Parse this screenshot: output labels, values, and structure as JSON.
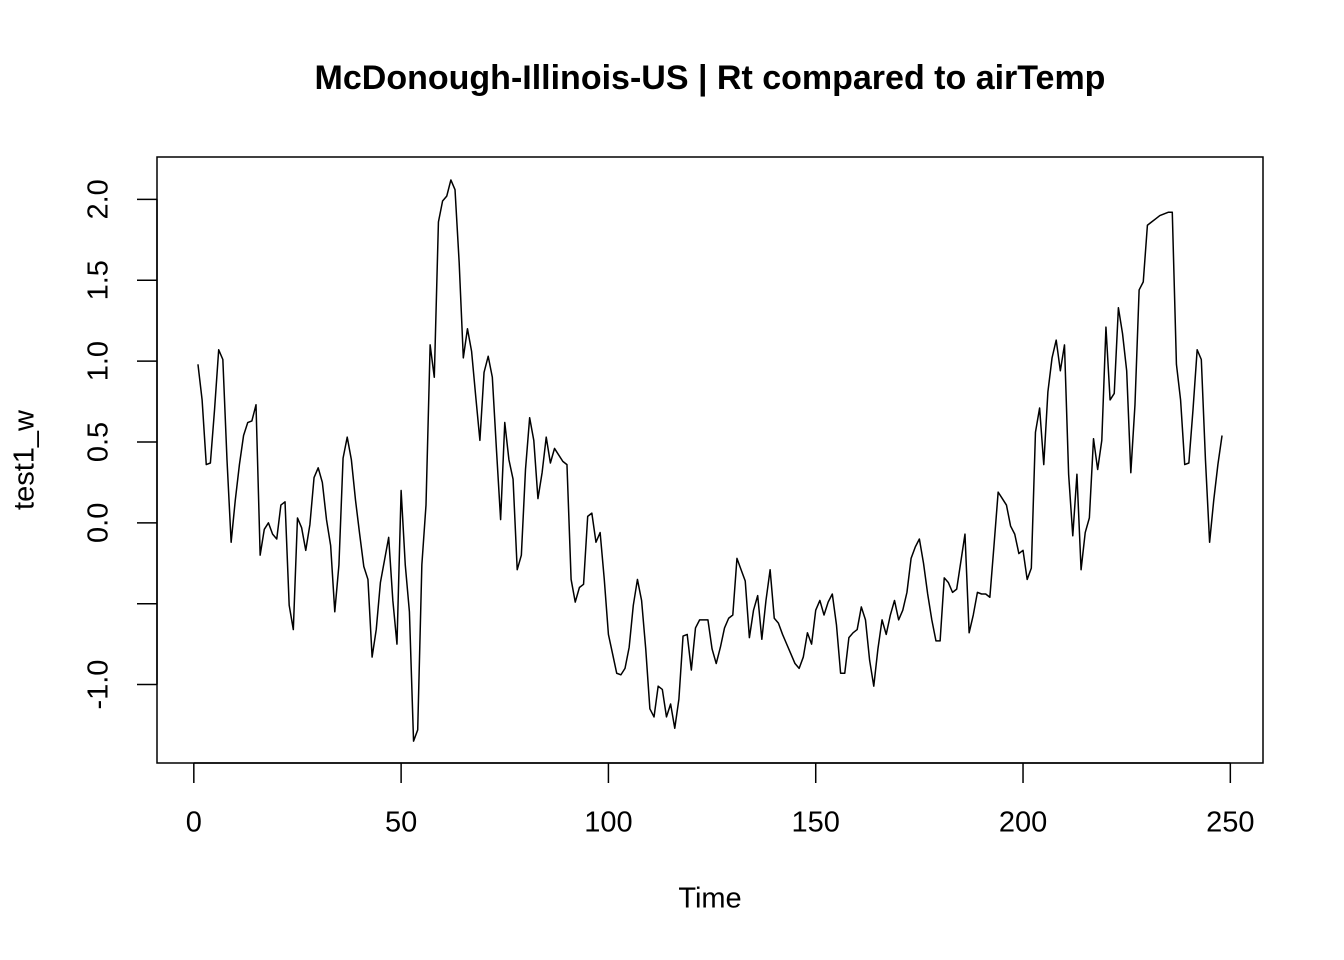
{
  "chart_data": {
    "type": "line",
    "title": "McDonough-Illinois-US | Rt compared to airTemp",
    "x_label": "Time",
    "y_label": "test1_w",
    "xlim": [
      -8.88,
      257.88
    ],
    "ylim": [
      -1.485,
      2.262
    ],
    "xticks": [
      0,
      50,
      100,
      150,
      200,
      250
    ],
    "yticks": [
      {
        "value": -1.0,
        "label": "-1.0"
      },
      {
        "value": -0.5,
        "label": null
      },
      {
        "value": 0.0,
        "label": "0.0"
      },
      {
        "value": 0.5,
        "label": "0.5"
      },
      {
        "value": 1.0,
        "label": "1.0"
      },
      {
        "value": 1.5,
        "label": "1.5"
      },
      {
        "value": 2.0,
        "label": "2.0"
      }
    ],
    "series": [
      {
        "color": "#000000",
        "x": [
          1,
          2,
          3,
          4,
          5,
          6,
          7,
          8,
          9,
          10,
          11,
          12,
          13,
          14,
          15,
          16,
          17,
          18,
          19,
          20,
          21,
          22,
          23,
          24,
          25,
          26,
          27,
          28,
          29,
          30,
          31,
          32,
          33,
          34,
          35,
          36,
          37,
          38,
          39,
          40,
          41,
          42,
          43,
          44,
          45,
          46,
          47,
          48,
          49,
          50,
          51,
          52,
          53,
          54,
          55,
          56,
          57,
          58,
          59,
          60,
          61,
          62,
          63,
          64,
          65,
          66,
          67,
          68,
          69,
          70,
          71,
          72,
          73,
          74,
          75,
          76,
          77,
          78,
          79,
          80,
          81,
          82,
          83,
          84,
          85,
          86,
          87,
          88,
          89,
          90,
          91,
          92,
          93,
          94,
          95,
          96,
          97,
          98,
          99,
          100,
          101,
          102,
          103,
          104,
          105,
          106,
          107,
          108,
          109,
          110,
          111,
          112,
          113,
          114,
          115,
          116,
          117,
          118,
          119,
          120,
          121,
          122,
          123,
          124,
          125,
          126,
          127,
          128,
          129,
          130,
          131,
          132,
          133,
          134,
          135,
          136,
          137,
          138,
          139,
          140,
          141,
          142,
          143,
          144,
          145,
          146,
          147,
          148,
          149,
          150,
          151,
          152,
          153,
          154,
          155,
          156,
          157,
          158,
          159,
          160,
          161,
          162,
          163,
          164,
          165,
          166,
          167,
          168,
          169,
          170,
          171,
          172,
          173,
          174,
          175,
          176,
          177,
          178,
          179,
          180,
          181,
          182,
          183,
          184,
          185,
          186,
          187,
          188,
          189,
          190,
          191,
          192,
          193,
          194,
          195,
          196,
          197,
          198,
          199,
          200,
          201,
          202,
          203,
          204,
          205,
          206,
          207,
          208,
          209,
          210,
          211,
          212,
          213,
          214,
          215,
          216,
          217,
          218,
          219,
          220,
          221,
          222,
          223,
          224,
          225,
          226,
          227,
          228,
          229,
          230,
          231,
          232,
          233,
          234,
          235,
          236,
          237,
          238,
          239,
          240,
          241,
          242,
          243,
          244,
          245,
          246,
          247,
          248
        ],
        "values": [
          0.98,
          0.76,
          0.36,
          0.37,
          0.7,
          1.07,
          1.01,
          0.39,
          -0.12,
          0.14,
          0.36,
          0.54,
          0.62,
          0.63,
          0.73,
          -0.2,
          -0.04,
          0.0,
          -0.07,
          -0.1,
          0.11,
          0.13,
          -0.51,
          -0.66,
          0.03,
          -0.03,
          -0.17,
          -0.01,
          0.28,
          0.34,
          0.25,
          0.02,
          -0.14,
          -0.55,
          -0.26,
          0.4,
          0.53,
          0.39,
          0.14,
          -0.07,
          -0.27,
          -0.35,
          -0.83,
          -0.66,
          -0.37,
          -0.23,
          -0.09,
          -0.48,
          -0.75,
          0.2,
          -0.26,
          -0.55,
          -1.35,
          -1.28,
          -0.26,
          0.11,
          1.1,
          0.9,
          1.86,
          1.99,
          2.02,
          2.12,
          2.06,
          1.61,
          1.02,
          1.2,
          1.06,
          0.78,
          0.51,
          0.93,
          1.03,
          0.9,
          0.45,
          0.02,
          0.62,
          0.39,
          0.27,
          -0.29,
          -0.2,
          0.33,
          0.65,
          0.51,
          0.15,
          0.31,
          0.53,
          0.37,
          0.46,
          0.42,
          0.38,
          0.36,
          -0.35,
          -0.49,
          -0.4,
          -0.38,
          0.04,
          0.06,
          -0.12,
          -0.06,
          -0.35,
          -0.69,
          -0.81,
          -0.93,
          -0.94,
          -0.9,
          -0.77,
          -0.51,
          -0.35,
          -0.48,
          -0.78,
          -1.15,
          -1.2,
          -1.01,
          -1.03,
          -1.2,
          -1.12,
          -1.27,
          -1.09,
          -0.7,
          -0.69,
          -0.91,
          -0.65,
          -0.6,
          -0.6,
          -0.6,
          -0.78,
          -0.87,
          -0.77,
          -0.65,
          -0.59,
          -0.57,
          -0.22,
          -0.29,
          -0.36,
          -0.71,
          -0.54,
          -0.45,
          -0.72,
          -0.48,
          -0.29,
          -0.59,
          -0.62,
          -0.69,
          -0.75,
          -0.81,
          -0.87,
          -0.9,
          -0.83,
          -0.68,
          -0.75,
          -0.54,
          -0.48,
          -0.57,
          -0.49,
          -0.44,
          -0.63,
          -0.93,
          -0.93,
          -0.71,
          -0.68,
          -0.66,
          -0.52,
          -0.6,
          -0.85,
          -1.01,
          -0.78,
          -0.6,
          -0.69,
          -0.57,
          -0.48,
          -0.6,
          -0.54,
          -0.43,
          -0.22,
          -0.15,
          -0.1,
          -0.25,
          -0.44,
          -0.6,
          -0.73,
          -0.73,
          -0.34,
          -0.37,
          -0.43,
          -0.41,
          -0.24,
          -0.07,
          -0.68,
          -0.57,
          -0.43,
          -0.44,
          -0.44,
          -0.46,
          -0.14,
          0.19,
          0.15,
          0.11,
          -0.02,
          -0.07,
          -0.19,
          -0.17,
          -0.35,
          -0.28,
          0.56,
          0.71,
          0.36,
          0.81,
          1.02,
          1.13,
          0.94,
          1.1,
          0.3,
          -0.08,
          0.3,
          -0.29,
          -0.06,
          0.03,
          0.52,
          0.33,
          0.51,
          1.21,
          0.76,
          0.8,
          1.33,
          1.17,
          0.94,
          0.31,
          0.73,
          1.44,
          1.49,
          1.84,
          1.86,
          1.88,
          1.9,
          1.91,
          1.92,
          1.92,
          0.98,
          0.76,
          0.36,
          0.37,
          0.7,
          1.07,
          1.01,
          0.39,
          -0.12,
          0.14,
          0.36,
          0.54
        ]
      }
    ]
  }
}
